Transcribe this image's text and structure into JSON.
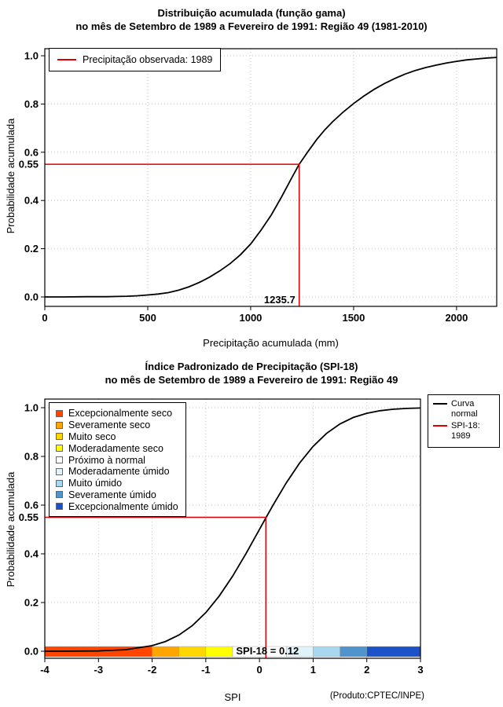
{
  "colors": {
    "red_line": "#dd0000",
    "curve_black": "#000000",
    "grid": "#c8c8c8"
  },
  "chart_data": [
    {
      "type": "line",
      "title": "Distribuição acumulada (função gama)",
      "subtitle": "no mês de Setembro de 1989 a Fevereiro de 1991: Região 49 (1981-2010)",
      "xlabel": "Precipitação acumulada (mm)",
      "ylabel": "Probabilidade acumulada",
      "xlim": [
        0,
        2195
      ],
      "ylim": [
        0,
        1
      ],
      "grid": "dotted",
      "xticks": {
        "values": [
          0,
          500,
          1000,
          1500,
          2000
        ],
        "labels": [
          "0",
          "500",
          "1000",
          "1500",
          "2000"
        ]
      },
      "yticks": {
        "values": [
          0.0,
          0.2,
          0.4,
          0.6,
          0.8,
          1.0
        ],
        "labels": [
          "0.0",
          "0.2",
          "0.4",
          "0.6",
          "0.8",
          "1.0"
        ]
      },
      "legend": {
        "position": "top-left",
        "entries": [
          {
            "label": "Precipitação observada: 1989",
            "color": "#dd0000",
            "type": "line"
          }
        ]
      },
      "series": [
        {
          "name": "gamma-cdf-curve",
          "color": "#000000",
          "x": [
            0,
            100,
            200,
            300,
            350,
            400,
            450,
            500,
            550,
            600,
            650,
            700,
            750,
            800,
            850,
            900,
            950,
            1000,
            1050,
            1100,
            1150,
            1200,
            1235.7,
            1280,
            1320,
            1360,
            1400,
            1450,
            1500,
            1550,
            1600,
            1650,
            1700,
            1750,
            1800,
            1850,
            1900,
            1950,
            2000,
            2050,
            2100,
            2150,
            2195
          ],
          "y": [
            0,
            0,
            0.001,
            0.001,
            0.002,
            0.003,
            0.005,
            0.008,
            0.012,
            0.018,
            0.028,
            0.042,
            0.06,
            0.082,
            0.108,
            0.138,
            0.175,
            0.22,
            0.277,
            0.34,
            0.415,
            0.495,
            0.55,
            0.605,
            0.652,
            0.693,
            0.728,
            0.767,
            0.802,
            0.833,
            0.861,
            0.885,
            0.906,
            0.924,
            0.939,
            0.951,
            0.961,
            0.97,
            0.977,
            0.983,
            0.987,
            0.991,
            0.993
          ]
        }
      ],
      "marker": {
        "x": 1235.7,
        "y": 0.55,
        "x_label": "1235.7",
        "y_label": "0.55",
        "color": "#dd0000"
      }
    },
    {
      "type": "line",
      "title": "Índice Padronizado de Precipitação (SPI-18)",
      "subtitle": "no mês de Setembro de 1989 a Fevereiro de 1991: Região 49",
      "xlabel": "SPI",
      "ylabel": "Probabilidade acumulada",
      "footnote": "(Produto:CPTEC/INPE)",
      "xlim": [
        -4,
        3
      ],
      "ylim": [
        0,
        1
      ],
      "grid": "dotted",
      "xticks": {
        "values": [
          -4,
          -3,
          -2,
          -1,
          0,
          1,
          2,
          3
        ],
        "labels": [
          "-4",
          "-3",
          "-2",
          "-1",
          "0",
          "1",
          "2",
          "3"
        ]
      },
      "yticks": {
        "values": [
          0.0,
          0.2,
          0.4,
          0.6,
          0.8,
          1.0
        ],
        "labels": [
          "0.0",
          "0.2",
          "0.4",
          "0.6",
          "0.8",
          "1.0"
        ]
      },
      "category_legend": [
        {
          "label": "Excepcionalmente seco",
          "color": "#ff4500"
        },
        {
          "label": "Severamente seco",
          "color": "#ffa500"
        },
        {
          "label": "Muito seco",
          "color": "#ffd700"
        },
        {
          "label": "Moderadamente seco",
          "color": "#ffff00"
        },
        {
          "label": "Próximo à normal",
          "color": "#ffffff"
        },
        {
          "label": "Moderadamente úmido",
          "color": "#dff3fa"
        },
        {
          "label": "Muito úmido",
          "color": "#a8d8ef"
        },
        {
          "label": "Severamente úmido",
          "color": "#4f94cd"
        },
        {
          "label": "Excepcionalmente úmido",
          "color": "#1c52c8"
        }
      ],
      "line_legend": [
        {
          "label": "Curva\nnormal",
          "color": "#000000"
        },
        {
          "label": "SPI-18: 1989",
          "color": "#dd0000"
        }
      ],
      "band": {
        "segments": [
          {
            "from": -4,
            "to": -2,
            "color": "#ff4500"
          },
          {
            "from": -2,
            "to": -1.5,
            "color": "#ffa500"
          },
          {
            "from": -1.5,
            "to": -1,
            "color": "#ffd700"
          },
          {
            "from": -1,
            "to": -0.5,
            "color": "#ffff00"
          },
          {
            "from": -0.5,
            "to": 0.5,
            "color": "#ffffff"
          },
          {
            "from": 0.5,
            "to": 1,
            "color": "#dff3fa"
          },
          {
            "from": 1,
            "to": 1.5,
            "color": "#a8d8ef"
          },
          {
            "from": 1.5,
            "to": 2,
            "color": "#4f94cd"
          },
          {
            "from": 2,
            "to": 3,
            "color": "#1c52c8"
          }
        ]
      },
      "series": [
        {
          "name": "normal-cdf-curve",
          "color": "#000000",
          "x": [
            -4,
            -3.5,
            -3,
            -2.5,
            -2,
            -1.75,
            -1.5,
            -1.25,
            -1,
            -0.75,
            -0.5,
            -0.25,
            0,
            0.12,
            0.25,
            0.5,
            0.75,
            1,
            1.25,
            1.5,
            1.75,
            2,
            2.25,
            2.5,
            2.75,
            3
          ],
          "y": [
            0.0,
            0.0002,
            0.0013,
            0.0062,
            0.0228,
            0.0401,
            0.0668,
            0.1056,
            0.1587,
            0.2266,
            0.3085,
            0.4013,
            0.5,
            0.5478,
            0.5987,
            0.6915,
            0.7734,
            0.8413,
            0.8944,
            0.9332,
            0.9599,
            0.9772,
            0.9878,
            0.9938,
            0.997,
            0.9987
          ]
        }
      ],
      "marker": {
        "x": 0.12,
        "y": 0.55,
        "label": "SPI-18 = 0.12",
        "y_label": "0.55",
        "color": "#dd0000"
      }
    }
  ]
}
